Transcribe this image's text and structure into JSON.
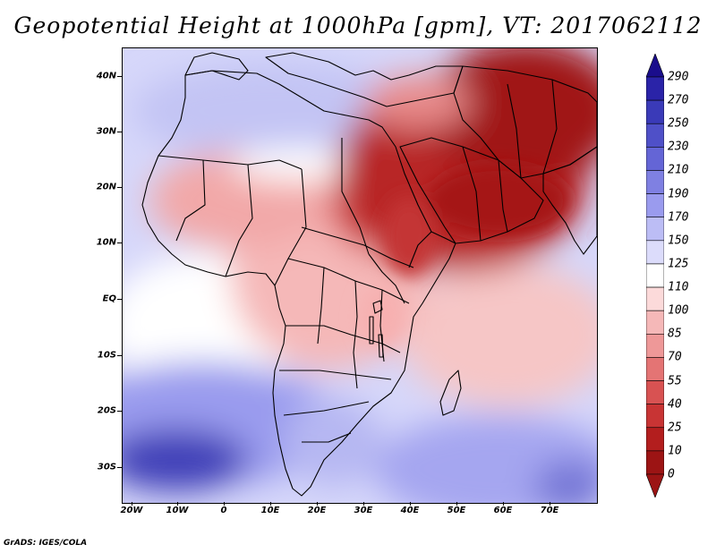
{
  "title": "Geopotential Height at 1000hPa [gpm], VT: 2017062112",
  "credit": "GrADS: IGES/COLA",
  "axes": {
    "lat_ticks": [
      "40N",
      "30N",
      "20N",
      "10N",
      "EQ",
      "10S",
      "20S",
      "30S"
    ],
    "lon_ticks": [
      "20W",
      "10W",
      "0",
      "10E",
      "20E",
      "30E",
      "40E",
      "50E",
      "60E",
      "70E"
    ]
  },
  "colorbar": {
    "levels": [
      "290",
      "270",
      "250",
      "230",
      "210",
      "190",
      "170",
      "150",
      "125",
      "110",
      "100",
      "85",
      "70",
      "55",
      "40",
      "25",
      "10",
      "0"
    ],
    "colors": [
      "#1a0d8c",
      "#2a23a8",
      "#3a3ab8",
      "#4f50c8",
      "#6465d6",
      "#7f80e2",
      "#9a9bee",
      "#bcbdf5",
      "#dcdcfb",
      "#ffffff",
      "#fcdada",
      "#f5b8b8",
      "#ee9898",
      "#e47474",
      "#d85252",
      "#c83434",
      "#b31e1e",
      "#9c1414"
    ]
  },
  "colors": {
    "deep_blue": "#3a3ab8",
    "light_blue": "#cfd0f8",
    "white": "#ffffff",
    "light_red": "#f7c4c4",
    "mid_red": "#e07070",
    "dark_red": "#a81818"
  }
}
